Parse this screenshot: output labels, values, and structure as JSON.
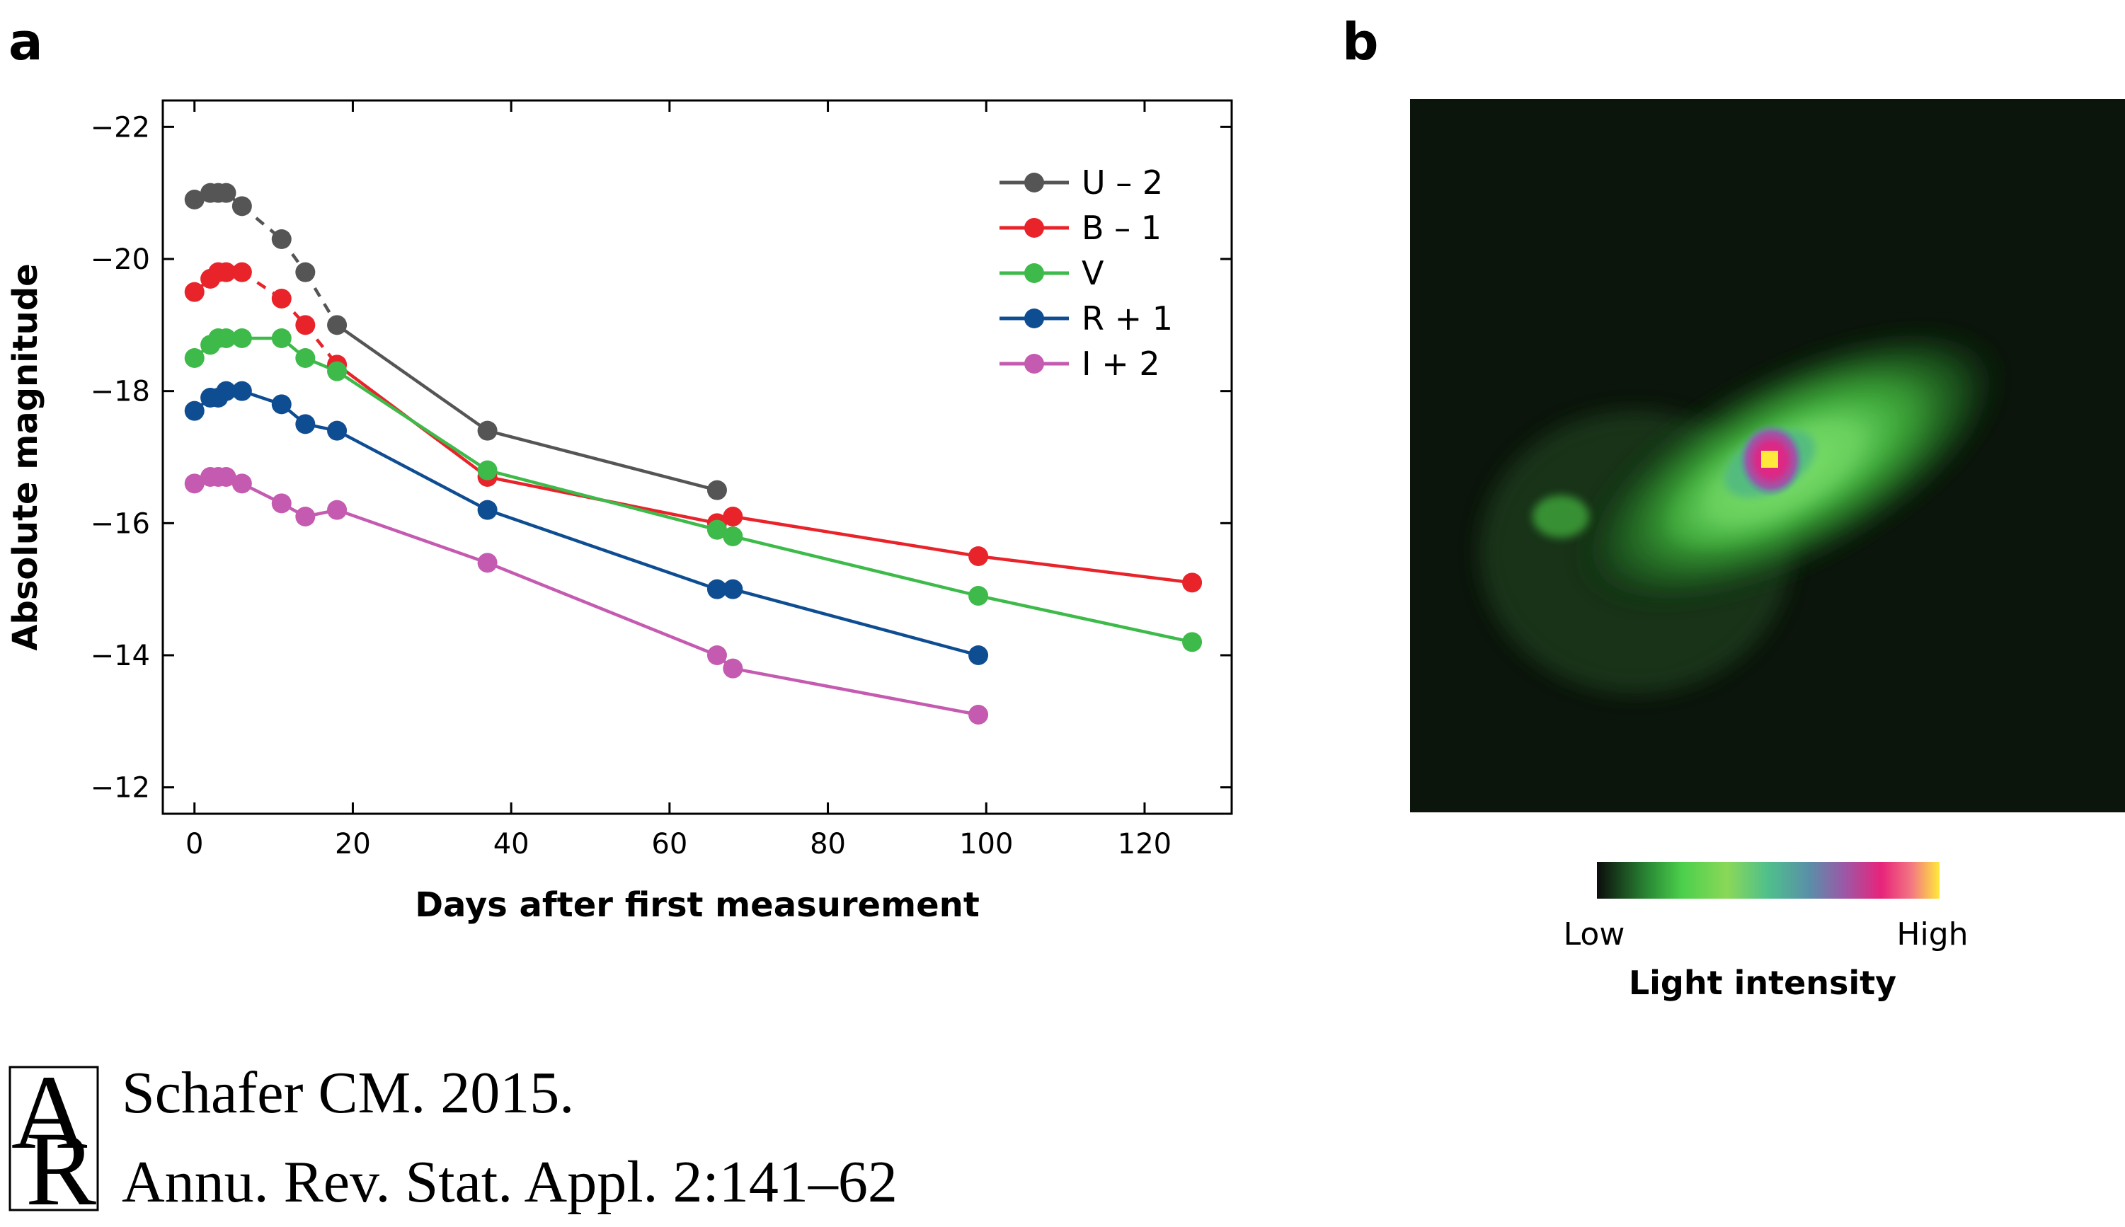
{
  "panels": {
    "a": "a",
    "b": "b"
  },
  "chart_data": {
    "type": "line",
    "xlabel": "Days after first measurement",
    "ylabel": "Absolute magnitude",
    "xlim": [
      -4,
      131
    ],
    "ylim": [
      -11.6,
      -22.4
    ],
    "y_inverted": true,
    "xticks": [
      0,
      20,
      40,
      60,
      80,
      100,
      120
    ],
    "yticks": [
      -22,
      -20,
      -18,
      -16,
      -14,
      -12
    ],
    "legend_position": "top-right",
    "grid": false,
    "series": [
      {
        "name": "U – 2",
        "color": "#555555",
        "x": [
          0,
          2,
          3,
          4,
          6,
          11,
          14,
          18,
          37,
          66
        ],
        "y": [
          -20.9,
          -21.0,
          -21.0,
          -21.0,
          -20.8,
          -20.3,
          -19.8,
          -19.0,
          -17.4,
          -16.5
        ],
        "dashed_segments": [
          4,
          5,
          6
        ]
      },
      {
        "name": "B – 1",
        "color": "#e8232a",
        "x": [
          0,
          2,
          3,
          4,
          6,
          11,
          14,
          18,
          37,
          66,
          68,
          99,
          126
        ],
        "y": [
          -19.5,
          -19.7,
          -19.8,
          -19.8,
          -19.8,
          -19.4,
          -19.0,
          -18.4,
          -16.7,
          -16.0,
          -16.1,
          -15.5,
          -15.1
        ],
        "dashed_segments": [
          4,
          5,
          6
        ]
      },
      {
        "name": "V",
        "color": "#3dba4a",
        "x": [
          0,
          2,
          3,
          4,
          6,
          11,
          14,
          18,
          37,
          66,
          68,
          99,
          126
        ],
        "y": [
          -18.5,
          -18.7,
          -18.8,
          -18.8,
          -18.8,
          -18.8,
          -18.5,
          -18.3,
          -16.8,
          -15.9,
          -15.8,
          -14.9,
          -14.2
        ],
        "dashed_segments": []
      },
      {
        "name": "R + 1",
        "color": "#0f4d92",
        "x": [
          0,
          2,
          3,
          4,
          6,
          11,
          14,
          18,
          37,
          66,
          68,
          99
        ],
        "y": [
          -17.7,
          -17.9,
          -17.9,
          -18.0,
          -18.0,
          -17.8,
          -17.5,
          -17.4,
          -16.2,
          -15.0,
          -15.0,
          -14.0
        ],
        "dashed_segments": []
      },
      {
        "name": "I + 2",
        "color": "#c45bb0",
        "x": [
          0,
          2,
          3,
          4,
          6,
          11,
          14,
          18,
          37,
          66,
          68,
          99
        ],
        "y": [
          -16.6,
          -16.7,
          -16.7,
          -16.7,
          -16.6,
          -16.3,
          -16.1,
          -16.2,
          -15.4,
          -14.0,
          -13.8,
          -13.1
        ],
        "dashed_segments": []
      }
    ]
  },
  "image_panel": {
    "colormap": [
      "#0c0c0c",
      "#2a8a35",
      "#4cd04c",
      "#8ad858",
      "#4fbf8c",
      "#5a8fa8",
      "#9a59a8",
      "#e8237a",
      "#f37a82",
      "#ffe93a"
    ],
    "colorbar": {
      "low": "Low",
      "high": "High",
      "title": "Light intensity"
    }
  },
  "citation": {
    "line1": "Schafer CM. 2015.",
    "line2": "Annu. Rev. Stat. Appl. 2:141–62",
    "logo_top": "A",
    "logo_bottom": "R"
  }
}
